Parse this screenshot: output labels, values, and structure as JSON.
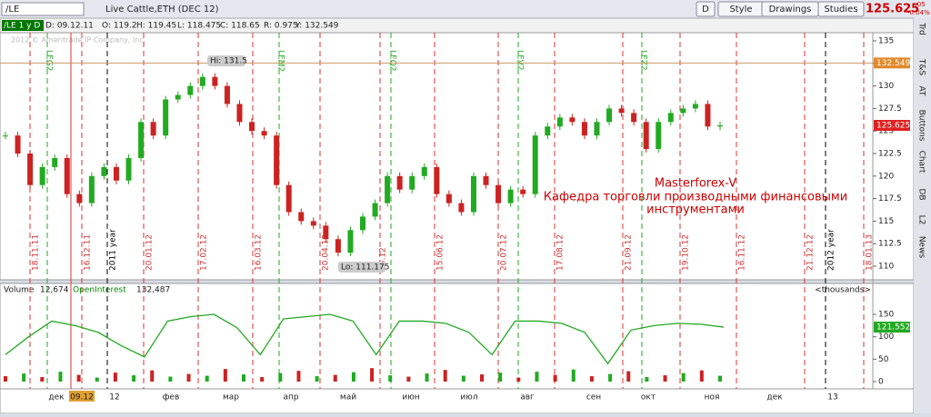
{
  "toolbar": {
    "symbol": "/LE",
    "instrument": "Live Cattle,ETH (DEC 12)",
    "buttons": [
      "D",
      "Style",
      "Drawings",
      "Studies"
    ],
    "last": "125.625",
    "change": "-.05",
    "change_pct": "-0.04%"
  },
  "header": [
    "/LE 1 y D",
    "D: 09.12.11",
    "O: 119.2",
    "H: 119.45",
    "L: 118.475",
    "C: 118.65",
    "R: 0.975",
    "Y: 132.549"
  ],
  "copyright": "2012 © Ameritrade IP Company, Inc.",
  "side_tabs": [
    "Trd",
    "T&S",
    "AT",
    "Buttons",
    "Chart",
    "DB",
    "L2",
    "News"
  ],
  "price": {
    "ylim": [
      110,
      135
    ],
    "yticks": [
      110,
      112.5,
      115,
      117.5,
      120,
      122.5,
      125,
      127.5,
      130,
      132.5,
      135
    ],
    "closes": [
      124.5,
      122.5,
      119,
      121,
      122,
      118,
      117,
      120,
      121,
      119.5,
      122,
      126,
      124.5,
      128.5,
      129,
      130,
      131,
      130,
      128,
      126,
      125,
      124.5,
      119,
      116,
      115,
      114.5,
      113,
      111.5,
      114,
      115.5,
      117,
      120,
      118.5,
      120,
      121,
      118,
      117,
      116,
      120,
      119,
      117,
      118.5,
      118,
      124.5,
      125.5,
      126.5,
      126,
      124.5,
      126,
      127.5,
      127,
      126,
      123,
      126,
      127,
      127.5,
      128,
      125.5,
      125.625
    ],
    "y_marker": {
      "value": 132.549,
      "label": "132.549"
    },
    "last_marker": {
      "value": 125.625,
      "label": "125.625"
    },
    "hi": "Hi: 131.5",
    "lo": "Lo: 111.175",
    "expiries": [
      "LEG2",
      "LEM2",
      "LEQ2",
      "LEV2",
      "LEZ2"
    ],
    "dates": [
      "18.11.11",
      "16.12.11",
      "2011 year",
      "20.01.12",
      "17.02.12",
      "16.03.12",
      "20.04.12",
      "05.12",
      "15.06.12",
      "20.07.12",
      "17.08.12",
      "21.09.12",
      "19.10.12",
      "16.11.12",
      "21.12.12",
      "2012 year",
      "18.01.13"
    ],
    "note": [
      "Masterforex-V",
      "Кафедра торговли производными финансовыми",
      "инструментами"
    ]
  },
  "lower": {
    "volume_label": "Volume",
    "volume": "12,674",
    "oi_label": "OpenInterest",
    "oi": "132,487",
    "units": "<thousands>",
    "ylim": [
      0,
      160
    ],
    "yticks": [
      0,
      50,
      100,
      150
    ],
    "open_interest": [
      60,
      100,
      135,
      125,
      110,
      80,
      55,
      135,
      145,
      150,
      120,
      60,
      140,
      145,
      150,
      135,
      60,
      135,
      135,
      130,
      110,
      60,
      135,
      135,
      130,
      110,
      40,
      115,
      125,
      130,
      128,
      121.552
    ],
    "oi_marker": {
      "value": 121.552,
      "label": "121.552"
    },
    "volumes": [
      12,
      18,
      10,
      22,
      15,
      9,
      20,
      14,
      25,
      11,
      17,
      13,
      28,
      16,
      10,
      19,
      24,
      12,
      15,
      21,
      30,
      14,
      11,
      18,
      26,
      13,
      16,
      20,
      9,
      22,
      15,
      27,
      12,
      17,
      23,
      10,
      14,
      19,
      25,
      13
    ]
  },
  "xaxis": [
    "дек",
    "09.12",
    "12",
    "фев",
    "мар",
    "апр",
    "май",
    "июн",
    "июл",
    "авг",
    "сен",
    "окт",
    "ноя",
    "дек",
    "13"
  ]
}
